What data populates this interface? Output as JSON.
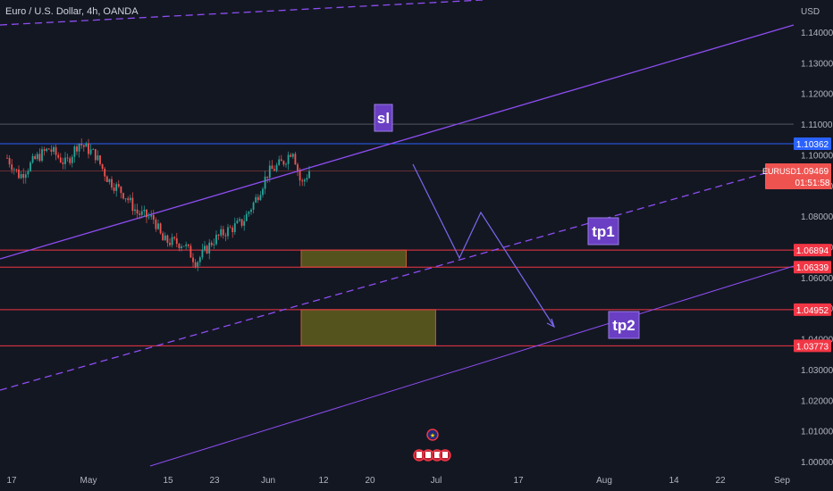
{
  "header": {
    "symbol_title": "Euro / U.S. Dollar, 4h, OANDA"
  },
  "currency": "USD",
  "colors": {
    "background": "#131722",
    "candle_up": "#26a69a",
    "candle_down": "#ef5350",
    "channel_line": "#8e4df2",
    "level_line": "#f23645",
    "sl_line": "#2962ff",
    "zone_fill": "#5c5a1e",
    "label_box": "#6a3fc4"
  },
  "labels": {
    "sl": "sl",
    "tp1": "tp1",
    "tp2": "tp2"
  },
  "price_tags": {
    "sl_level": "1.10362",
    "current_symbol": "EURUSD",
    "current_price": "1.09469",
    "countdown": "01:51:58",
    "tp1_upper": "1.06894",
    "tp1_lower": "1.06339",
    "tp2_upper": "1.04952",
    "tp2_lower": "1.03773"
  },
  "chart_data": {
    "type": "candlestick",
    "title": "Euro / U.S. Dollar, 4h, OANDA",
    "ylabel": "USD",
    "ylim": [
      0.995,
      1.148
    ],
    "y_ticks": [
      "1.14000",
      "1.13000",
      "1.12000",
      "1.11000",
      "1.10000",
      "1.09000",
      "1.08000",
      "1.07000",
      "1.06000",
      "1.05000",
      "1.04000",
      "1.03000",
      "1.02000",
      "1.01000",
      "1.00000"
    ],
    "x_ticks": [
      "17",
      "May",
      "15",
      "23",
      "Jun",
      "12",
      "20",
      "Jul",
      "17",
      "Aug",
      "14",
      "22",
      "Sep"
    ],
    "price_path": [
      [
        "Apr 17",
        1.099
      ],
      [
        "Apr 20",
        1.093
      ],
      [
        "Apr 24",
        1.099
      ],
      [
        "Apr 27",
        1.102
      ],
      [
        "May 1",
        1.097
      ],
      [
        "May 4",
        1.104
      ],
      [
        "May 8",
        1.1
      ],
      [
        "May 11",
        1.092
      ],
      [
        "May 15",
        1.087
      ],
      [
        "May 18",
        1.081
      ],
      [
        "May 22",
        1.079
      ],
      [
        "May 24",
        1.072
      ],
      [
        "May 29",
        1.071
      ],
      [
        "Jun 1",
        1.065
      ],
      [
        "Jun 5",
        1.072
      ],
      [
        "Jun 8",
        1.075
      ],
      [
        "Jun 12",
        1.078
      ],
      [
        "Jun 15",
        1.085
      ],
      [
        "Jun 18",
        1.094
      ],
      [
        "Jun 22",
        1.098
      ],
      [
        "Jun 24",
        1.102
      ],
      [
        "Jun 26",
        1.09
      ],
      [
        "Jun 28",
        1.095
      ]
    ],
    "horizontal_levels": [
      1.10362,
      1.09469,
      1.11,
      1.06894,
      1.06339,
      1.04952,
      1.03773
    ],
    "projection_path": [
      [
        "Jun 28",
        1.0947
      ],
      [
        "Jul 6",
        1.0665
      ],
      [
        "Jul 12",
        1.0815
      ],
      [
        "Jul 23",
        1.042
      ]
    ],
    "zones": [
      {
        "name": "tp1",
        "from": "Jun 26",
        "to": "Jul 21",
        "top": 1.06894,
        "bottom": 1.06339
      },
      {
        "name": "tp2",
        "from": "Jun 26",
        "to": "Jul 28",
        "top": 1.04952,
        "bottom": 1.03773
      }
    ]
  }
}
